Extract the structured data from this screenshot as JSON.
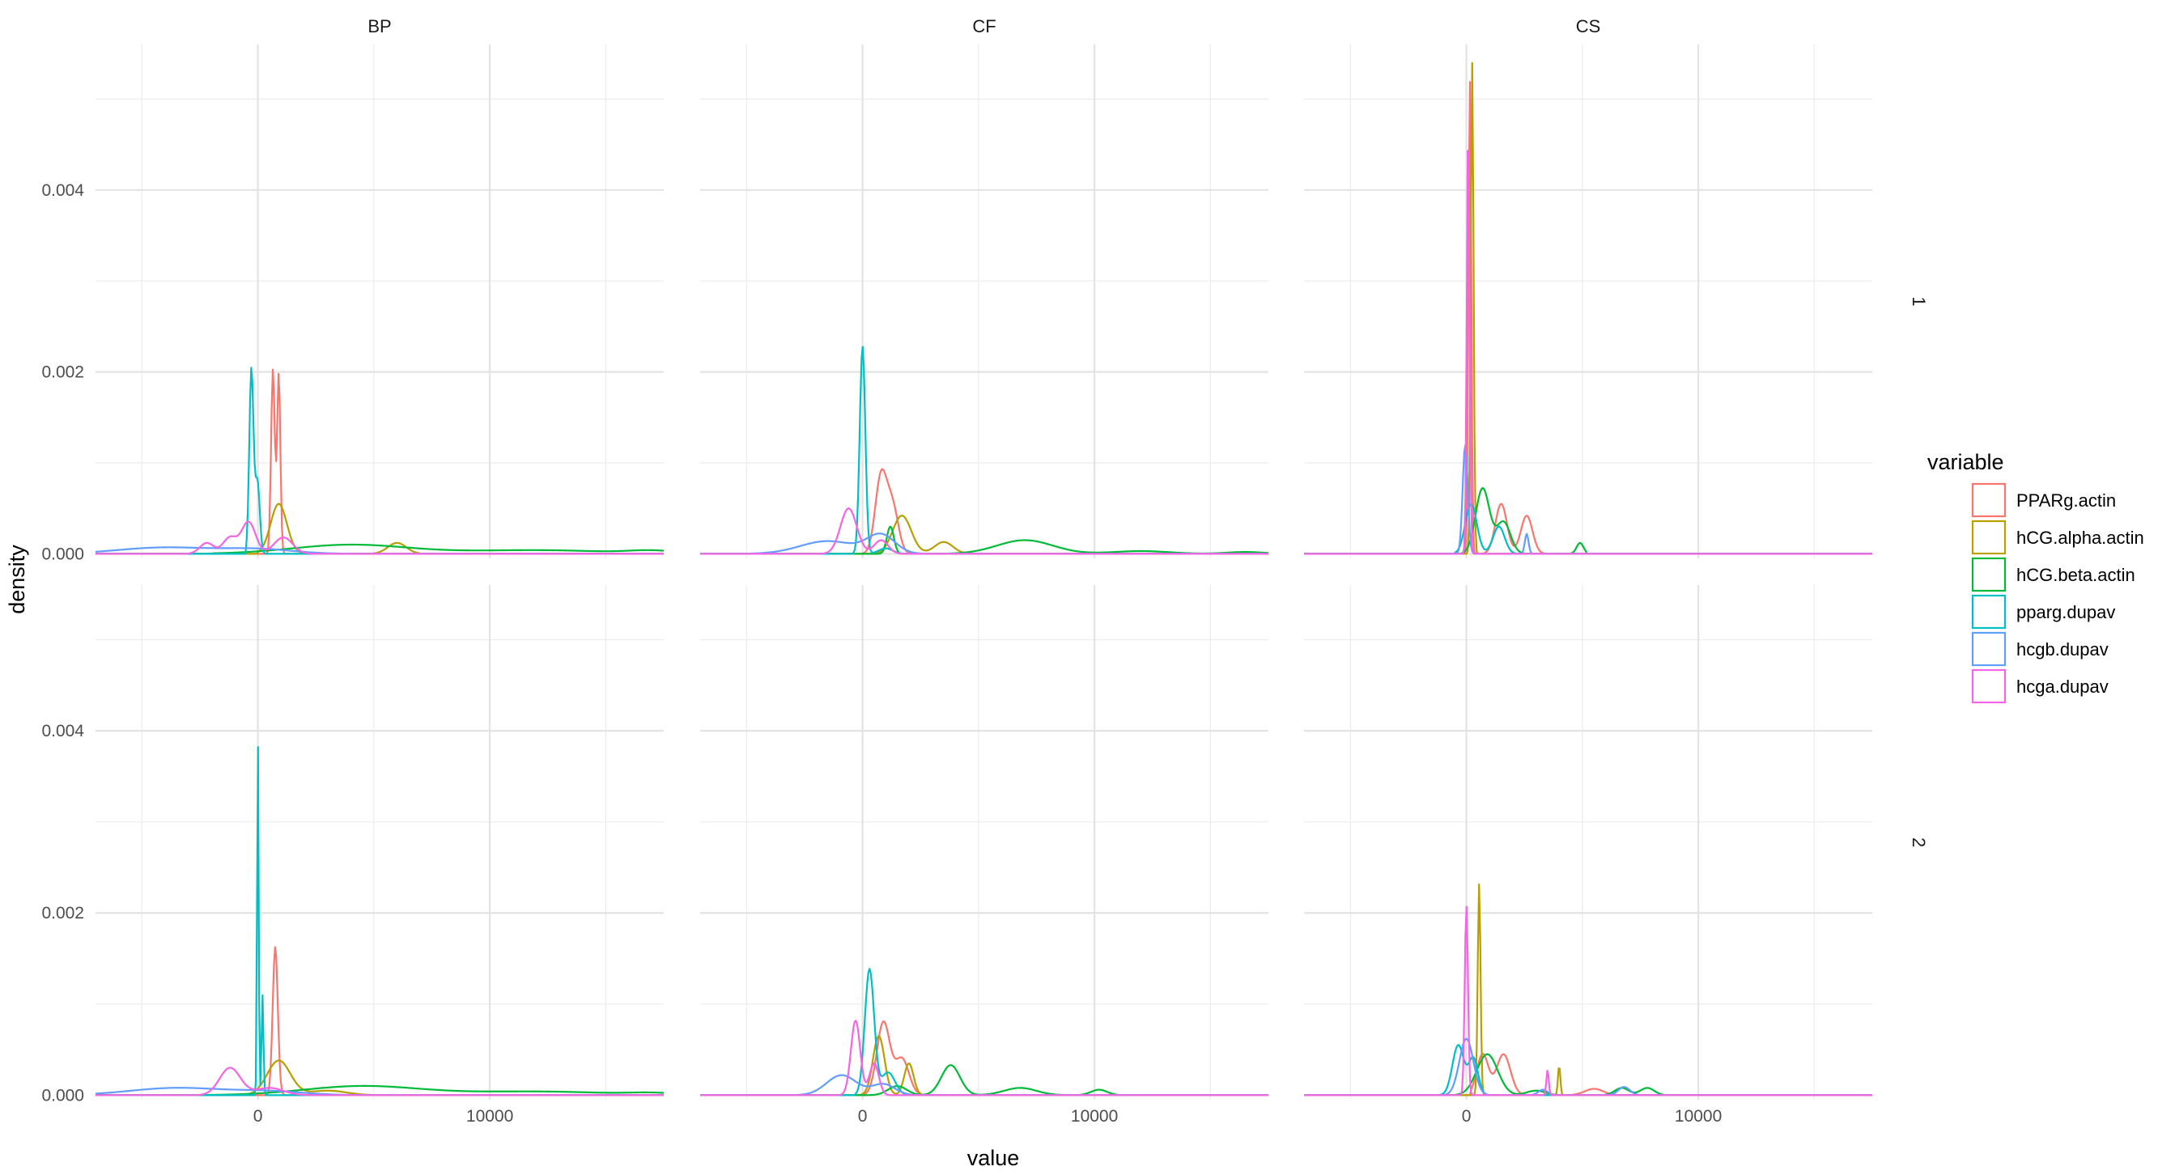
{
  "chart_data": {
    "type": "line",
    "subtype": "density",
    "xlabel": "value",
    "ylabel": "density",
    "xlim": [
      -7000,
      17500
    ],
    "ylim": [
      -5e-05,
      0.0056
    ],
    "x_ticks": [
      0,
      10000
    ],
    "x_tick_labels": [
      "0",
      "10000"
    ],
    "y_ticks": [
      0,
      0.002,
      0.004
    ],
    "y_tick_labels": [
      "0.000",
      "0.002",
      "0.004"
    ],
    "grid": true,
    "columns": [
      "BP",
      "CF",
      "CS"
    ],
    "rows": [
      "1",
      "2"
    ],
    "legend": {
      "title": "variable",
      "position": "right",
      "entries": [
        "PPARg.actin",
        "hCG.alpha.actin",
        "hCG.beta.actin",
        "pparg.dupav",
        "hcgb.dupav",
        "hcga.dupav"
      ]
    },
    "colors": {
      "PPARg.actin": "#F8766D",
      "hCG.alpha.actin": "#B79F00",
      "hCG.beta.actin": "#00BA38",
      "pparg.dupav": "#00BFC4",
      "hcgb.dupav": "#619CFF",
      "hcga.dupav": "#F564E3"
    },
    "panels": [
      {
        "column": "BP",
        "row": "1",
        "series": [
          {
            "name": "PPARg.actin",
            "xmin": 400,
            "xmax": 1200,
            "peaks": [
              [
                650,
                0.00203,
                80
              ],
              [
                900,
                0.00198,
                70
              ]
            ]
          },
          {
            "name": "hCG.alpha.actin",
            "xmin": 0,
            "xmax": 7000,
            "peaks": [
              [
                900,
                0.00055,
                350
              ],
              [
                6000,
                0.00012,
                400
              ]
            ]
          },
          {
            "name": "hCG.beta.actin",
            "xmin": -2000,
            "xmax": 17500,
            "peaks": [
              [
                4000,
                0.0001,
                2500
              ],
              [
                12000,
                4e-05,
                3000
              ],
              [
                17000,
                3e-05,
                1000
              ]
            ]
          },
          {
            "name": "pparg.dupav",
            "xmin": -500,
            "xmax": 700,
            "peaks": [
              [
                -280,
                0.00203,
                90
              ],
              [
                -20,
                0.0008,
                100
              ]
            ]
          },
          {
            "name": "hcgb.dupav",
            "xmin": -7000,
            "xmax": 5000,
            "peaks": [
              [
                -4000,
                7e-05,
                2000
              ],
              [
                0,
                5e-05,
                1500
              ]
            ]
          },
          {
            "name": "hcga.dupav",
            "xmin": -3000,
            "xmax": 3000,
            "peaks": [
              [
                -2200,
                0.00012,
                300
              ],
              [
                -1200,
                0.00018,
                300
              ],
              [
                -400,
                0.00035,
                300
              ],
              [
                1100,
                0.00018,
                400
              ]
            ]
          }
        ]
      },
      {
        "column": "CF",
        "row": "1",
        "series": [
          {
            "name": "PPARg.actin",
            "xmin": 0,
            "xmax": 3000,
            "peaks": [
              [
                800,
                0.00085,
                250
              ],
              [
                1300,
                0.0005,
                250
              ]
            ]
          },
          {
            "name": "hCG.alpha.actin",
            "xmin": 0,
            "xmax": 5000,
            "peaks": [
              [
                1700,
                0.00042,
                400
              ],
              [
                3500,
                0.00013,
                400
              ]
            ]
          },
          {
            "name": "hCG.beta.actin",
            "xmin": -1000,
            "xmax": 17500,
            "peaks": [
              [
                1200,
                0.0003,
                150
              ],
              [
                7000,
                0.00015,
                1200
              ],
              [
                12000,
                3e-05,
                1200
              ],
              [
                16500,
                2e-05,
                800
              ]
            ]
          },
          {
            "name": "pparg.dupav",
            "xmin": -500,
            "xmax": 1800,
            "peaks": [
              [
                0,
                0.00228,
                120
              ],
              [
                1000,
                6e-05,
                300
              ]
            ]
          },
          {
            "name": "hcgb.dupav",
            "xmin": -7000,
            "xmax": 4000,
            "peaks": [
              [
                -1500,
                0.00014,
                1200
              ],
              [
                800,
                0.0002,
                600
              ]
            ]
          },
          {
            "name": "hcga.dupav",
            "xmin": -2500,
            "xmax": 2500,
            "peaks": [
              [
                -600,
                0.0005,
                350
              ],
              [
                800,
                0.00015,
                300
              ]
            ]
          }
        ]
      },
      {
        "column": "CS",
        "row": "1",
        "series": [
          {
            "name": "PPARg.actin",
            "xmin": -300,
            "xmax": 4000,
            "peaks": [
              [
                150,
                0.0052,
                60
              ],
              [
                1500,
                0.00055,
                250
              ],
              [
                2600,
                0.00042,
                250
              ]
            ]
          },
          {
            "name": "hCG.alpha.actin",
            "xmin": 0,
            "xmax": 600,
            "peaks": [
              [
                250,
                0.0054,
                60
              ]
            ]
          },
          {
            "name": "hCG.beta.actin",
            "xmin": -200,
            "xmax": 5200,
            "peaks": [
              [
                700,
                0.00072,
                300
              ],
              [
                1600,
                0.00035,
                300
              ],
              [
                4900,
                0.00012,
                150
              ]
            ]
          },
          {
            "name": "pparg.dupav",
            "xmin": -500,
            "xmax": 2500,
            "peaks": [
              [
                200,
                0.00055,
                250
              ],
              [
                1400,
                0.0003,
                250
              ]
            ]
          },
          {
            "name": "hcgb.dupav",
            "xmin": -500,
            "xmax": 2900,
            "peaks": [
              [
                -50,
                0.0012,
                110
              ],
              [
                2600,
                0.00022,
                80
              ]
            ]
          },
          {
            "name": "hcga.dupav",
            "xmin": -200,
            "xmax": 500,
            "peaks": [
              [
                80,
                0.0048,
                60
              ]
            ]
          }
        ]
      },
      {
        "column": "BP",
        "row": "2",
        "series": [
          {
            "name": "PPARg.actin",
            "xmin": 300,
            "xmax": 1500,
            "peaks": [
              [
                750,
                0.00163,
                110
              ]
            ]
          },
          {
            "name": "hCG.alpha.actin",
            "xmin": -500,
            "xmax": 5000,
            "peaks": [
              [
                900,
                0.00038,
                500
              ],
              [
                3000,
                5e-05,
                800
              ]
            ]
          },
          {
            "name": "hCG.beta.actin",
            "xmin": -3000,
            "xmax": 17500,
            "peaks": [
              [
                4500,
                0.0001,
                2500
              ],
              [
                12000,
                4e-05,
                3000
              ],
              [
                17000,
                2e-05,
                1000
              ]
            ]
          },
          {
            "name": "pparg.dupav",
            "xmin": -300,
            "xmax": 600,
            "peaks": [
              [
                0,
                0.0039,
                35
              ],
              [
                200,
                0.0011,
                40
              ]
            ]
          },
          {
            "name": "hcgb.dupav",
            "xmin": -7000,
            "xmax": 5000,
            "peaks": [
              [
                -3500,
                8e-05,
                2000
              ],
              [
                500,
                4e-05,
                1500
              ]
            ]
          },
          {
            "name": "hcga.dupav",
            "xmin": -3000,
            "xmax": 3000,
            "peaks": [
              [
                -1200,
                0.0003,
                450
              ],
              [
                500,
                8e-05,
                600
              ]
            ]
          }
        ]
      },
      {
        "column": "CF",
        "row": "2",
        "series": [
          {
            "name": "PPARg.actin",
            "xmin": -300,
            "xmax": 3000,
            "peaks": [
              [
                900,
                0.0008,
                280
              ],
              [
                1700,
                0.0004,
                300
              ]
            ]
          },
          {
            "name": "hCG.alpha.actin",
            "xmin": -300,
            "xmax": 3000,
            "peaks": [
              [
                700,
                0.00065,
                250
              ],
              [
                2000,
                0.00035,
                200
              ]
            ]
          },
          {
            "name": "hCG.beta.actin",
            "xmin": -500,
            "xmax": 12000,
            "peaks": [
              [
                1500,
                0.0001,
                400
              ],
              [
                3800,
                0.00033,
                400
              ],
              [
                6800,
                8e-05,
                700
              ],
              [
                10200,
                6e-05,
                350
              ]
            ]
          },
          {
            "name": "pparg.dupav",
            "xmin": -300,
            "xmax": 2200,
            "peaks": [
              [
                300,
                0.00138,
                200
              ],
              [
                1100,
                0.00025,
                300
              ]
            ]
          },
          {
            "name": "hcgb.dupav",
            "xmin": -3000,
            "xmax": 3000,
            "peaks": [
              [
                -900,
                0.00022,
                650
              ],
              [
                900,
                0.00012,
                500
              ]
            ]
          },
          {
            "name": "hcga.dupav",
            "xmin": -1500,
            "xmax": 2000,
            "peaks": [
              [
                -300,
                0.00082,
                200
              ],
              [
                500,
                0.00035,
                200
              ]
            ]
          }
        ]
      },
      {
        "column": "CS",
        "row": "2",
        "series": [
          {
            "name": "PPARg.actin",
            "xmin": 200,
            "xmax": 6500,
            "peaks": [
              [
                700,
                0.00045,
                250
              ],
              [
                1600,
                0.00045,
                300
              ],
              [
                5500,
                7e-05,
                400
              ]
            ]
          },
          {
            "name": "hCG.alpha.actin",
            "xmin": 300,
            "xmax": 4500,
            "peaks": [
              [
                550,
                0.00232,
                60
              ],
              [
                4000,
                0.00033,
                50
              ]
            ]
          },
          {
            "name": "hCG.beta.actin",
            "xmin": -500,
            "xmax": 9000,
            "peaks": [
              [
                900,
                0.00045,
                450
              ],
              [
                3000,
                5e-05,
                400
              ],
              [
                6700,
                8e-05,
                300
              ],
              [
                7800,
                8e-05,
                300
              ]
            ]
          },
          {
            "name": "pparg.dupav",
            "xmin": -1200,
            "xmax": 1500,
            "peaks": [
              [
                -350,
                0.00055,
                250
              ],
              [
                300,
                0.0004,
                200
              ]
            ]
          },
          {
            "name": "hcgb.dupav",
            "xmin": -1500,
            "xmax": 7500,
            "peaks": [
              [
                0,
                0.00062,
                300
              ],
              [
                3300,
                6e-05,
                200
              ],
              [
                6800,
                9e-05,
                250
              ]
            ]
          },
          {
            "name": "hcga.dupav",
            "xmin": -300,
            "xmax": 3800,
            "peaks": [
              [
                0,
                0.00208,
                70
              ],
              [
                3500,
                0.00028,
                50
              ]
            ]
          }
        ]
      }
    ]
  }
}
